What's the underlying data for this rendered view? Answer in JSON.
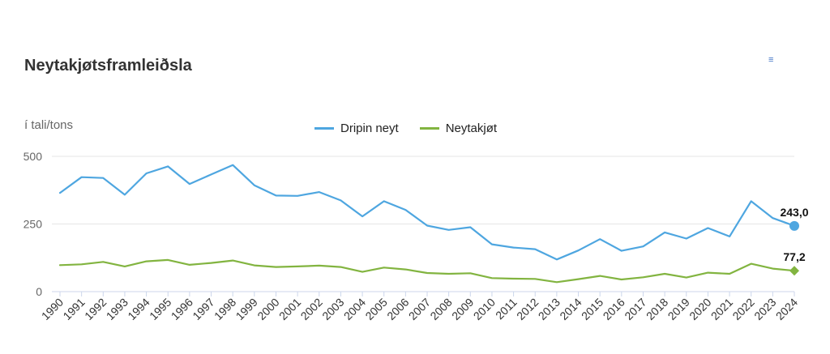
{
  "header": {
    "title": "Neytakjøtsframleiðsla",
    "menu_icon": "hamburger-menu-icon"
  },
  "chart_data": {
    "type": "line",
    "title": "Neytakjøtsframleiðsla",
    "ylabel": "í tali/tons",
    "xlabel": "",
    "ylim": [
      0,
      500
    ],
    "yticks": [
      0,
      250,
      500
    ],
    "grid": true,
    "legend_position": "top-center",
    "x": [
      "1990",
      "1991",
      "1992",
      "1993",
      "1994",
      "1995",
      "1996",
      "1997",
      "1998",
      "1999",
      "2000",
      "2001",
      "2002",
      "2003",
      "2004",
      "2005",
      "2006",
      "2007",
      "2008",
      "2009",
      "2010",
      "2011",
      "2012",
      "2013",
      "2014",
      "2015",
      "2016",
      "2017",
      "2018",
      "2019",
      "2020",
      "2021",
      "2022",
      "2023",
      "2024"
    ],
    "series": [
      {
        "name": "Dripin neyt",
        "color": "#4ea6e0",
        "values": [
          365,
          423,
          420,
          358,
          437,
          463,
          398,
          433,
          468,
          393,
          355,
          354,
          368,
          337,
          278,
          334,
          302,
          244,
          228,
          238,
          175,
          163,
          157,
          119,
          152,
          194,
          151,
          167,
          219,
          196,
          235,
          204,
          334,
          272,
          243
        ],
        "end_label": "243,0"
      },
      {
        "name": "Neytakjøt",
        "color": "#82b440",
        "values": [
          98,
          101,
          110,
          93,
          112,
          117,
          99,
          106,
          115,
          97,
          91,
          93,
          96,
          91,
          73,
          89,
          82,
          69,
          66,
          68,
          50,
          48,
          47,
          35,
          46,
          58,
          45,
          53,
          66,
          52,
          70,
          66,
          103,
          85,
          77.2
        ],
        "end_label": "77,2"
      }
    ]
  }
}
